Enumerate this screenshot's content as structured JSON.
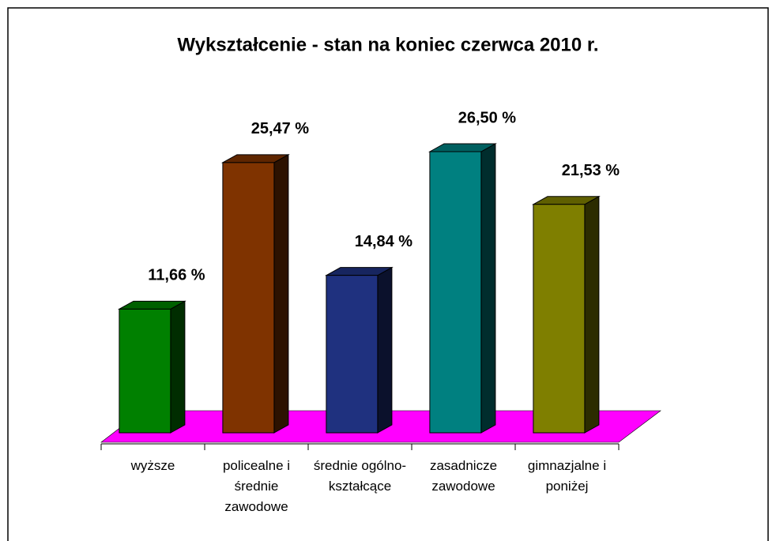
{
  "chart_data": {
    "type": "bar3d",
    "title": "Wykształcenie - stan na koniec czerwca 2010 r.",
    "categories": [
      "wyższe",
      "policealne i średnie zawodowe",
      "średnie ogólno-kształcące",
      "zasadnicze zawodowe",
      "gimnazjalne i poniżej"
    ],
    "values": [
      11.66,
      25.47,
      14.84,
      26.5,
      21.53
    ],
    "value_labels": [
      "11,66 %",
      "25,47 %",
      "14,84 %",
      "26,50 %",
      "21,53 %"
    ],
    "colors": [
      "#008000",
      "#7f3300",
      "#1f317f",
      "#008080",
      "#7f7f00"
    ],
    "floor_color": "#ff00ff"
  }
}
